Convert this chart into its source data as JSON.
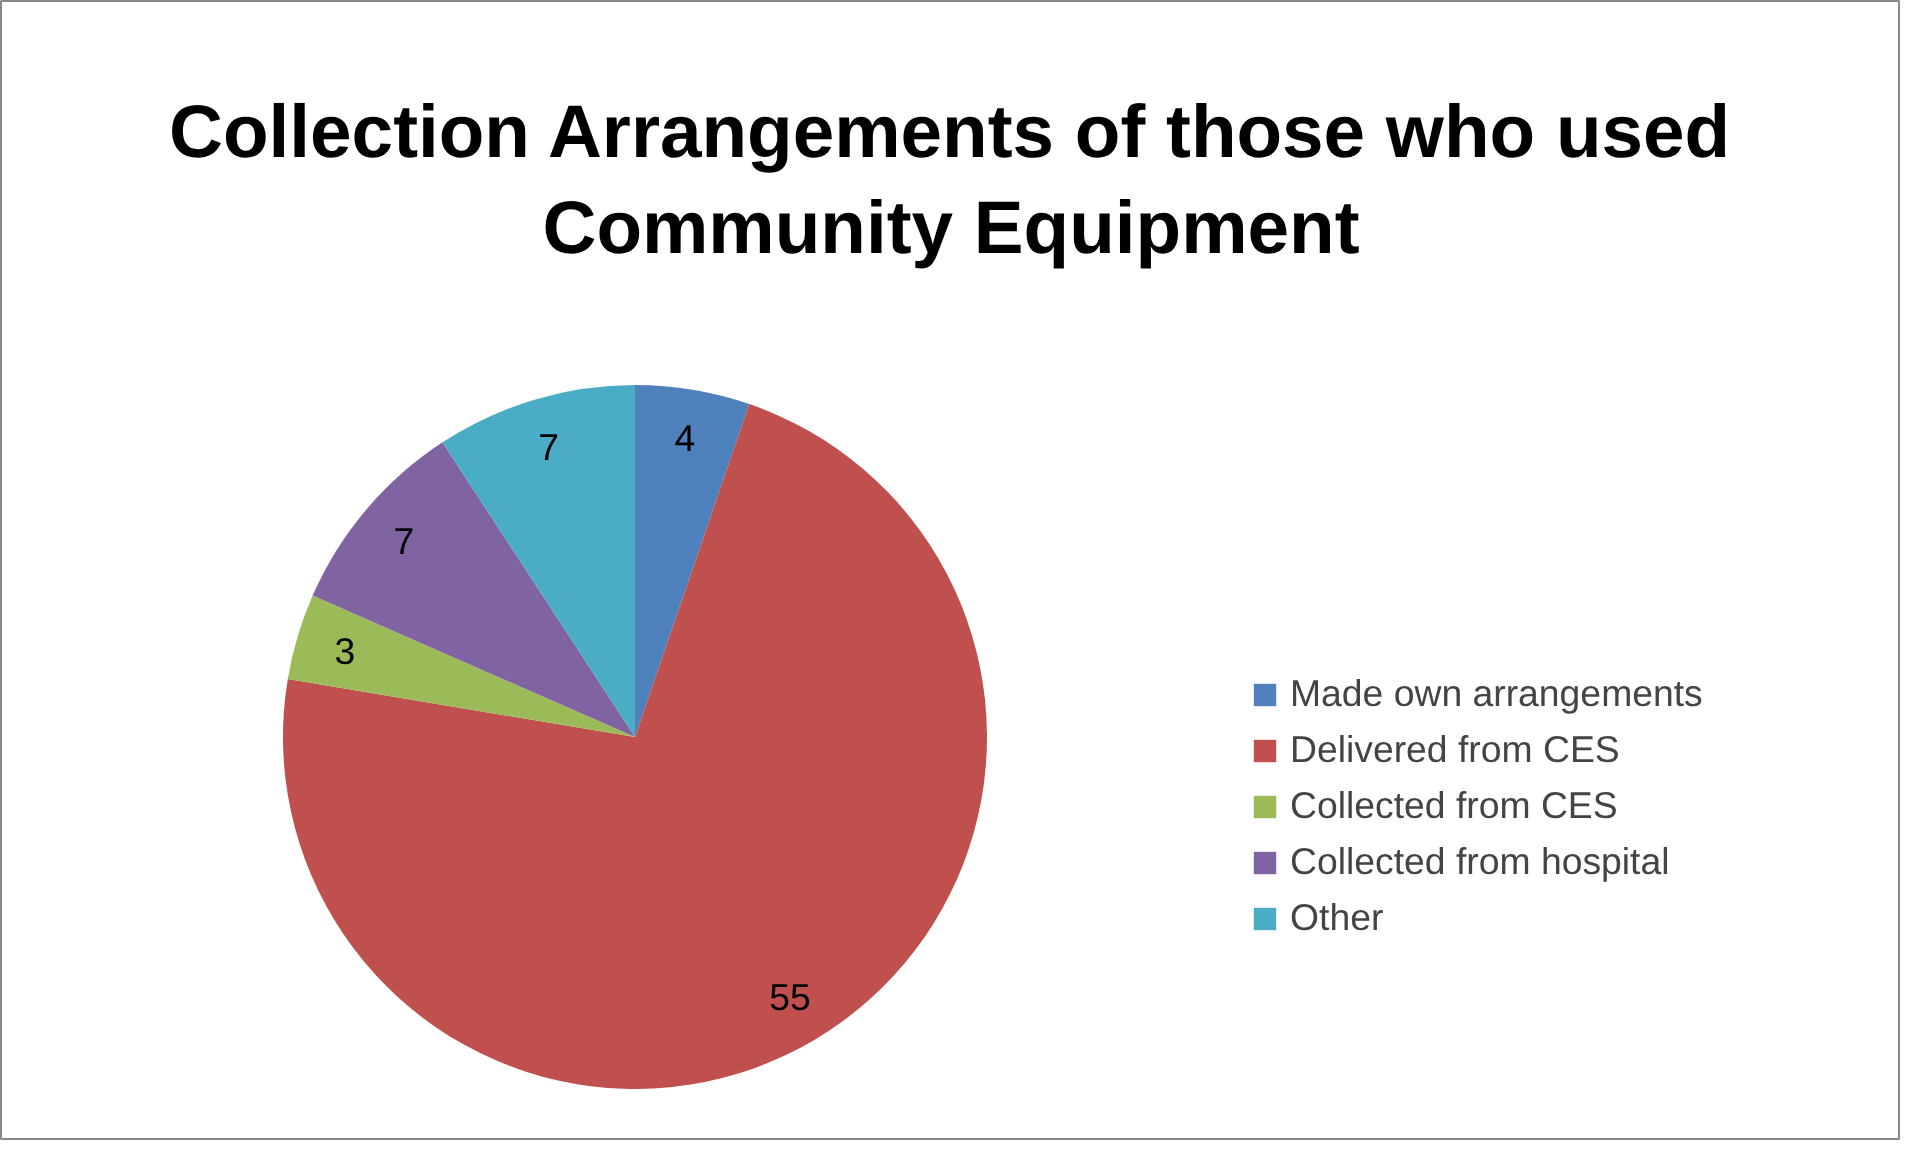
{
  "chart_data": {
    "type": "pie",
    "title": "Collection Arrangements of those who used Community Equipment",
    "categories": [
      "Made own arrangements",
      "Delivered from CES",
      "Collected from CES",
      "Collected from hospital",
      "Other"
    ],
    "values": [
      4,
      55,
      3,
      7,
      7
    ],
    "colors": [
      "#4f81bd",
      "#c0504d",
      "#9bbb59",
      "#8064a2",
      "#4bacc6"
    ],
    "data_labels": true,
    "legend": "right"
  }
}
